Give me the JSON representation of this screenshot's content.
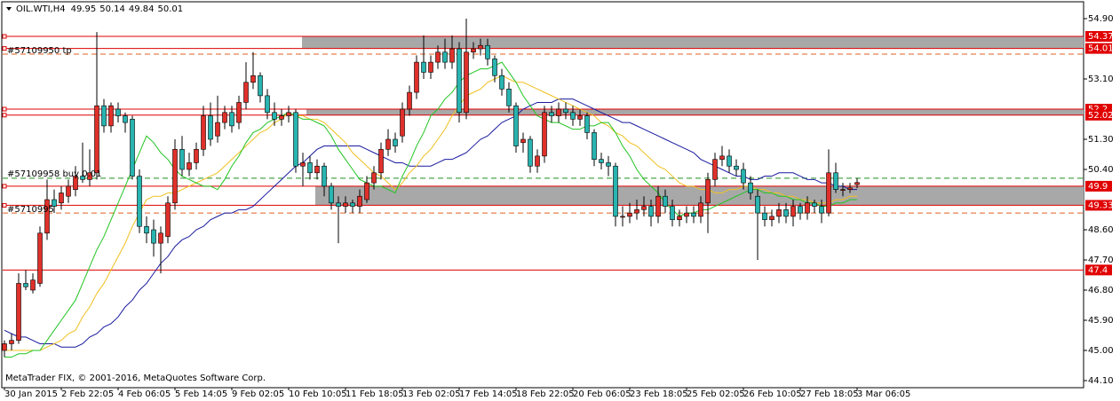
{
  "chart_data": {
    "type": "candlestick",
    "title": "OIL.WTI,H4",
    "footer": "MetaTrader FIX, © 2001-2016, MetaQuotes Software Corp.",
    "annotations": [
      "#57109950 tp",
      "#57109958 buy 0.01",
      "#5710995"
    ],
    "bull_color": "#e0302a",
    "bear_color": "#28b4b0",
    "ylim": [
      44.1,
      54.9
    ],
    "yticks": [
      {
        "value": 54.9,
        "label": "54.90"
      },
      {
        "value": 53.1,
        "label": "53.10"
      },
      {
        "value": 51.3,
        "label": "51.30"
      },
      {
        "value": 50.4,
        "label": "50.40"
      },
      {
        "value": 48.6,
        "label": "48.60"
      },
      {
        "value": 47.7,
        "label": "47.70"
      },
      {
        "value": 46.8,
        "label": "46.80"
      },
      {
        "value": 45.9,
        "label": "45.90"
      },
      {
        "value": 45,
        "label": "45.00"
      },
      {
        "value": 44.1,
        "label": "44.10"
      }
    ],
    "zones": [
      {
        "top": 54.37,
        "bottom": 54.01,
        "color": "#a8a8a8"
      },
      {
        "top": 52.2,
        "bottom": 52.02,
        "color": "#a8a8a8"
      },
      {
        "top": 49.9,
        "bottom": 49.33,
        "color": "#a8a8a8"
      }
    ],
    "levels": [
      {
        "value": 53.84,
        "color": "#e06020",
        "style": "dashed"
      },
      {
        "value": 50.14,
        "color": "#209020",
        "style": "dashed"
      },
      {
        "value": 49.1,
        "color": "#e06020",
        "style": "dashed"
      },
      {
        "value": 47.4,
        "color": "#e00000",
        "style": "solid"
      }
    ],
    "categories": [
      "30 Jan 2015",
      null,
      null,
      null,
      null,
      null,
      null,
      null,
      "2 Feb 22:05",
      null,
      null,
      null,
      null,
      null,
      null,
      null,
      "4 Feb 06:05",
      null,
      null,
      null,
      null,
      null,
      null,
      null,
      "5 Feb 14:05",
      null,
      null,
      null,
      null,
      null,
      null,
      null,
      "9 Feb 02:05",
      null,
      null,
      null,
      null,
      null,
      null,
      null,
      "10 Feb 10:05",
      null,
      null,
      null,
      null,
      null,
      null,
      null,
      "11 Feb 18:05",
      null,
      null,
      null,
      null,
      null,
      null,
      null,
      "13 Feb 02:05",
      null,
      null,
      null,
      null,
      null,
      null,
      null,
      "17 Feb 14:05",
      null,
      null,
      null,
      null,
      null,
      null,
      null,
      "18 Feb 22:05",
      null,
      null,
      null,
      null,
      null,
      null,
      null,
      "20 Feb 06:05",
      null,
      null,
      null,
      null,
      null,
      null,
      null,
      "23 Feb 18:05",
      null,
      null,
      null,
      null,
      null,
      null,
      null,
      "25 Feb 02:05",
      null,
      null,
      null,
      null,
      null,
      null,
      null,
      "26 Feb 10:05",
      null,
      null,
      null,
      null,
      null,
      null,
      null,
      "27 Feb 18:05",
      null,
      null,
      null,
      null,
      null,
      null,
      null,
      "3 Mar 06:05"
    ],
    "candles": [
      [
        45.0,
        45.3,
        44.8,
        45.2
      ],
      [
        45.2,
        45.5,
        45.0,
        45.3
      ],
      [
        45.3,
        47.3,
        45.2,
        47.0
      ],
      [
        47.0,
        47.4,
        46.8,
        46.9
      ],
      [
        46.8,
        47.3,
        46.7,
        47.1
      ],
      [
        47.0,
        48.7,
        46.9,
        48.5
      ],
      [
        48.5,
        50.1,
        48.3,
        49.5
      ],
      [
        49.5,
        49.8,
        49.1,
        49.3
      ],
      [
        49.4,
        49.9,
        49.2,
        49.7
      ],
      [
        49.6,
        50.1,
        49.4,
        49.9
      ],
      [
        49.8,
        50.5,
        49.6,
        50.2
      ],
      [
        50.2,
        51.2,
        50.0,
        50.1
      ],
      [
        50.1,
        51.0,
        49.9,
        50.3
      ],
      [
        50.3,
        54.5,
        50.1,
        52.3
      ],
      [
        52.3,
        52.5,
        51.5,
        51.7
      ],
      [
        51.7,
        52.4,
        51.5,
        52.3
      ],
      [
        52.2,
        52.4,
        51.8,
        52.0
      ],
      [
        52.0,
        52.1,
        51.5,
        51.8
      ],
      [
        51.9,
        52.0,
        50.1,
        50.2
      ],
      [
        50.2,
        50.4,
        48.5,
        48.7
      ],
      [
        48.7,
        49.0,
        48.2,
        48.5
      ],
      [
        48.6,
        48.9,
        47.8,
        48.2
      ],
      [
        48.2,
        48.7,
        47.3,
        48.5
      ],
      [
        48.4,
        49.6,
        48.2,
        49.4
      ],
      [
        49.4,
        51.3,
        49.2,
        51.0
      ],
      [
        51.0,
        51.4,
        50.2,
        50.4
      ],
      [
        50.4,
        50.9,
        50.2,
        50.6
      ],
      [
        50.6,
        51.2,
        50.4,
        51.0
      ],
      [
        51.0,
        52.3,
        50.8,
        52.0
      ],
      [
        52.0,
        52.4,
        51.1,
        51.3
      ],
      [
        51.4,
        52.6,
        51.2,
        51.8
      ],
      [
        51.8,
        52.3,
        51.6,
        52.1
      ],
      [
        52.1,
        52.3,
        51.5,
        51.7
      ],
      [
        51.8,
        52.6,
        51.6,
        52.4
      ],
      [
        52.4,
        53.6,
        52.2,
        53.0
      ],
      [
        53.0,
        53.9,
        52.8,
        53.2
      ],
      [
        53.2,
        53.3,
        52.4,
        52.6
      ],
      [
        52.6,
        52.8,
        51.9,
        52.1
      ],
      [
        52.1,
        52.4,
        51.7,
        51.9
      ],
      [
        51.9,
        52.2,
        51.7,
        52.0
      ],
      [
        52.0,
        52.3,
        51.8,
        52.1
      ],
      [
        52.1,
        52.2,
        50.3,
        50.5
      ],
      [
        50.5,
        50.9,
        49.9,
        50.6
      ],
      [
        50.6,
        50.8,
        50.1,
        50.3
      ],
      [
        50.3,
        50.7,
        50.1,
        50.5
      ],
      [
        50.5,
        50.6,
        49.6,
        49.9
      ],
      [
        49.9,
        50.0,
        49.2,
        49.4
      ],
      [
        49.4,
        49.6,
        48.2,
        49.3
      ],
      [
        49.3,
        49.6,
        49.1,
        49.4
      ],
      [
        49.4,
        49.5,
        49.1,
        49.3
      ],
      [
        49.3,
        49.8,
        49.1,
        49.6
      ],
      [
        49.5,
        50.2,
        49.4,
        50.0
      ],
      [
        50.0,
        50.5,
        49.8,
        50.3
      ],
      [
        50.3,
        51.2,
        50.1,
        51.0
      ],
      [
        51.0,
        51.6,
        50.8,
        51.3
      ],
      [
        51.3,
        51.5,
        50.9,
        51.1
      ],
      [
        51.4,
        52.4,
        51.2,
        52.2
      ],
      [
        52.2,
        52.9,
        52.0,
        52.7
      ],
      [
        52.7,
        53.8,
        52.5,
        53.6
      ],
      [
        53.6,
        54.4,
        53.1,
        53.3
      ],
      [
        53.3,
        53.8,
        53.1,
        53.6
      ],
      [
        53.6,
        54.1,
        53.4,
        53.9
      ],
      [
        53.9,
        54.3,
        53.4,
        53.6
      ],
      [
        53.6,
        54.4,
        53.4,
        54.0
      ],
      [
        54.0,
        54.2,
        51.8,
        52.1
      ],
      [
        52.1,
        54.9,
        51.9,
        53.9
      ],
      [
        53.9,
        54.2,
        53.7,
        54.0
      ],
      [
        54.0,
        54.3,
        53.8,
        54.1
      ],
      [
        54.1,
        54.3,
        53.5,
        53.7
      ],
      [
        53.7,
        53.8,
        53.0,
        53.2
      ],
      [
        53.2,
        53.4,
        52.6,
        52.8
      ],
      [
        52.8,
        53.0,
        52.1,
        52.3
      ],
      [
        52.3,
        52.4,
        50.9,
        51.1
      ],
      [
        51.2,
        51.5,
        50.9,
        51.3
      ],
      [
        51.3,
        51.4,
        50.3,
        50.5
      ],
      [
        50.5,
        51.0,
        50.3,
        50.8
      ],
      [
        50.8,
        52.3,
        50.6,
        52.1
      ],
      [
        52.1,
        52.3,
        51.8,
        52.0
      ],
      [
        52.0,
        52.4,
        51.8,
        52.2
      ],
      [
        52.2,
        52.4,
        51.9,
        52.1
      ],
      [
        52.1,
        52.3,
        51.7,
        51.9
      ],
      [
        51.9,
        52.2,
        51.7,
        52.0
      ],
      [
        52.0,
        52.1,
        51.3,
        51.5
      ],
      [
        51.5,
        51.6,
        50.5,
        50.7
      ],
      [
        50.7,
        50.9,
        50.4,
        50.6
      ],
      [
        50.6,
        50.8,
        50.2,
        50.5
      ],
      [
        50.5,
        50.6,
        48.7,
        49.0
      ],
      [
        49.0,
        49.3,
        48.7,
        49.0
      ],
      [
        49.0,
        49.4,
        48.8,
        49.1
      ],
      [
        49.1,
        49.5,
        48.9,
        49.2
      ],
      [
        49.2,
        49.6,
        49.0,
        49.3
      ],
      [
        49.3,
        49.5,
        48.7,
        49.0
      ],
      [
        49.0,
        49.9,
        48.8,
        49.6
      ],
      [
        49.6,
        49.8,
        49.1,
        49.3
      ],
      [
        49.3,
        49.5,
        48.7,
        48.9
      ],
      [
        48.9,
        49.2,
        48.7,
        49.0
      ],
      [
        49.0,
        49.3,
        48.8,
        49.1
      ],
      [
        49.1,
        49.3,
        48.8,
        49.0
      ],
      [
        49.0,
        49.6,
        48.8,
        49.4
      ],
      [
        49.4,
        50.3,
        48.5,
        50.1
      ],
      [
        50.1,
        50.9,
        49.9,
        50.7
      ],
      [
        50.7,
        51.1,
        50.5,
        50.8
      ],
      [
        50.8,
        51.0,
        50.3,
        50.5
      ],
      [
        50.5,
        50.7,
        50.2,
        50.4
      ],
      [
        50.4,
        50.6,
        49.8,
        50.0
      ],
      [
        50.0,
        50.2,
        49.5,
        49.7
      ],
      [
        49.6,
        49.8,
        47.7,
        49.1
      ],
      [
        49.1,
        49.3,
        48.7,
        48.9
      ],
      [
        48.9,
        49.2,
        48.7,
        49.0
      ],
      [
        49.0,
        49.4,
        48.8,
        49.2
      ],
      [
        49.2,
        49.4,
        48.8,
        49.0
      ],
      [
        49.0,
        49.5,
        48.7,
        49.3
      ],
      [
        49.3,
        49.4,
        48.9,
        49.1
      ],
      [
        49.1,
        49.6,
        48.9,
        49.4
      ],
      [
        49.4,
        49.5,
        49.1,
        49.3
      ],
      [
        49.3,
        49.5,
        48.8,
        49.1
      ],
      [
        49.1,
        51.0,
        49.0,
        50.3
      ],
      [
        50.3,
        50.6,
        49.7,
        49.8
      ],
      [
        49.8,
        50.0,
        49.6,
        49.8
      ],
      [
        49.8,
        50.0,
        49.7,
        49.85
      ],
      [
        49.95,
        50.14,
        49.84,
        50.01
      ]
    ],
    "series": [
      {
        "color": "#1a1aa0",
        "values": [
          45.6,
          45.5,
          45.4,
          45.4,
          45.3,
          45.2,
          45.2,
          45.2,
          45.1,
          45.1,
          45.1,
          45.2,
          45.4,
          45.5,
          45.7,
          45.8,
          46.0,
          46.3,
          46.5,
          46.8,
          47.0,
          47.3,
          47.6,
          47.8,
          48.1,
          48.3,
          48.4,
          48.6,
          48.7,
          48.9,
          49.0,
          49.1,
          49.1,
          49.2,
          49.2,
          49.3,
          49.5,
          49.7,
          49.9,
          50.1,
          50.3,
          50.5,
          50.6,
          50.8,
          51.0,
          51.1,
          51.1,
          51.1,
          51.1,
          51.1,
          51.1,
          51.0,
          50.9,
          50.8,
          50.7,
          50.6,
          50.6,
          50.5,
          50.5,
          50.5,
          50.5,
          50.6,
          50.7,
          50.7,
          50.8,
          50.9,
          51.1,
          51.3,
          51.4,
          51.6,
          51.8,
          51.9,
          52.0,
          52.2,
          52.3,
          52.4,
          52.4,
          52.4,
          52.5,
          52.5,
          52.5,
          52.4,
          52.3,
          52.2,
          52.1,
          52.0,
          51.9,
          51.8,
          51.8,
          51.7,
          51.6,
          51.5,
          51.4,
          51.3,
          51.2,
          51.1,
          51.0,
          50.9,
          50.7,
          50.6,
          50.5,
          50.4,
          50.3,
          50.2,
          50.2,
          50.1,
          50.1,
          50.2,
          50.2,
          50.3,
          50.3,
          50.3,
          50.2,
          50.1,
          50.1,
          50.0,
          50.0,
          49.9,
          49.9,
          49.8,
          49.8
        ]
      },
      {
        "color": "#f0c020",
        "values": [
          45.0,
          45.0,
          45.0,
          45.0,
          45.0,
          45.0,
          45.1,
          45.2,
          45.3,
          45.5,
          45.6,
          46.0,
          46.3,
          46.7,
          47.0,
          47.4,
          47.8,
          48.2,
          48.7,
          49.1,
          49.5,
          49.6,
          49.6,
          49.7,
          49.7,
          49.8,
          49.9,
          50.0,
          50.1,
          50.2,
          50.3,
          50.5,
          50.7,
          50.9,
          51.1,
          51.3,
          51.5,
          51.6,
          51.8,
          51.9,
          52.1,
          52.0,
          52.0,
          51.9,
          51.9,
          51.8,
          51.6,
          51.4,
          51.2,
          50.9,
          50.7,
          50.5,
          50.3,
          50.2,
          50.0,
          49.8,
          50.0,
          50.3,
          50.5,
          50.8,
          51.0,
          51.3,
          51.6,
          52.0,
          52.3,
          52.6,
          52.7,
          52.8,
          53.0,
          53.1,
          53.2,
          53.1,
          53.0,
          53.0,
          52.9,
          52.8,
          52.7,
          52.6,
          52.5,
          52.4,
          52.3,
          52.2,
          52.1,
          52.0,
          51.8,
          51.7,
          51.5,
          51.4,
          51.2,
          51.1,
          50.9,
          50.7,
          50.5,
          50.4,
          50.2,
          50.0,
          49.9,
          49.9,
          49.8,
          49.8,
          49.7,
          49.7,
          49.8,
          49.8,
          49.9,
          49.9,
          49.8,
          49.8,
          49.7,
          49.7,
          49.6,
          49.6,
          49.5,
          49.5,
          49.4,
          49.4,
          49.4,
          49.5,
          49.5,
          49.6,
          49.6
        ]
      },
      {
        "color": "#22c422",
        "values": [
          44.8,
          44.8,
          44.9,
          44.9,
          45.0,
          45.0,
          45.3,
          45.6,
          45.9,
          46.2,
          46.5,
          47.0,
          47.5,
          48.0,
          48.4,
          48.9,
          49.4,
          49.9,
          50.4,
          50.9,
          51.4,
          51.2,
          50.9,
          50.7,
          50.4,
          50.2,
          50.1,
          50.0,
          49.9,
          49.9,
          49.8,
          50.1,
          50.5,
          50.8,
          51.2,
          51.5,
          51.6,
          51.8,
          51.9,
          52.0,
          52.1,
          52.0,
          51.9,
          51.9,
          51.8,
          51.7,
          51.4,
          51.0,
          50.7,
          50.4,
          50.1,
          50.0,
          49.9,
          49.9,
          49.8,
          49.7,
          50.2,
          50.6,
          51.1,
          51.5,
          52.0,
          52.2,
          52.5,
          52.7,
          53.0,
          53.2,
          53.3,
          53.4,
          53.4,
          53.5,
          53.6,
          53.3,
          53.0,
          52.6,
          52.3,
          52.0,
          51.9,
          51.8,
          51.8,
          51.7,
          51.6,
          51.6,
          51.7,
          51.7,
          51.8,
          51.8,
          51.5,
          51.1,
          50.8,
          50.4,
          50.1,
          49.9,
          49.7,
          49.4,
          49.2,
          49.0,
          49.1,
          49.1,
          49.2,
          49.2,
          49.3,
          49.4,
          49.5,
          49.6,
          49.7,
          49.8,
          49.8,
          49.7,
          49.7,
          49.6,
          49.6,
          49.5,
          49.5,
          49.4,
          49.4,
          49.3,
          49.3,
          49.4,
          49.4,
          49.5,
          49.5
        ]
      }
    ]
  }
}
